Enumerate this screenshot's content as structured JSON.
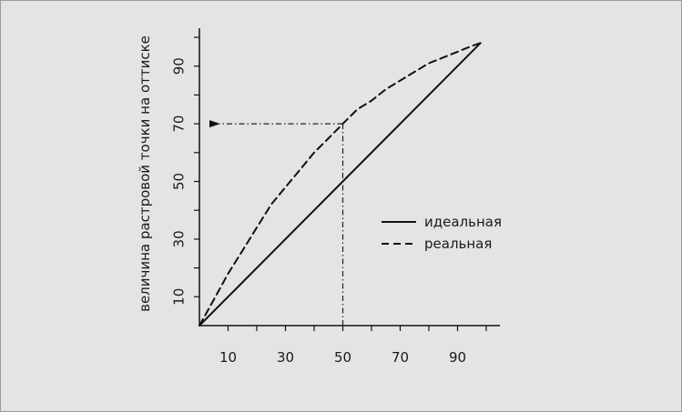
{
  "chart_data": {
    "type": "line",
    "title": "",
    "xlabel": "",
    "ylabel": "величина растровой точки на оттиске",
    "xlim": [
      0,
      100
    ],
    "ylim": [
      0,
      100
    ],
    "x_ticks": [
      10,
      30,
      50,
      70,
      90
    ],
    "y_ticks": [
      10,
      30,
      50,
      70,
      90
    ],
    "grid": false,
    "legend_position": "middle-right",
    "series": [
      {
        "name": "идеальная",
        "style": "solid",
        "color": "#111111",
        "x": [
          0,
          98
        ],
        "y": [
          0,
          98
        ]
      },
      {
        "name": "реальная",
        "style": "dashed",
        "color": "#111111",
        "x": [
          0,
          5,
          10,
          15,
          20,
          25,
          30,
          35,
          40,
          45,
          50,
          55,
          60,
          65,
          70,
          75,
          80,
          85,
          90,
          95,
          98
        ],
        "y": [
          0,
          9,
          18,
          26,
          34,
          42,
          48,
          54,
          60,
          65,
          70,
          75,
          78,
          82,
          85,
          88,
          91,
          93,
          95,
          97,
          98
        ]
      }
    ],
    "annotation": {
      "x": 50,
      "y": 70,
      "style": "dash-dot",
      "arrow_to": "y-axis"
    }
  }
}
